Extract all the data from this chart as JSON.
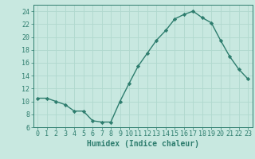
{
  "x": [
    0,
    1,
    2,
    3,
    4,
    5,
    6,
    7,
    8,
    9,
    10,
    11,
    12,
    13,
    14,
    15,
    16,
    17,
    18,
    19,
    20,
    21,
    22,
    23
  ],
  "y": [
    10.5,
    10.5,
    10.0,
    9.5,
    8.5,
    8.5,
    7.0,
    6.8,
    6.8,
    10.0,
    12.8,
    15.5,
    17.5,
    19.5,
    21.0,
    22.8,
    23.5,
    24.0,
    23.0,
    22.2,
    19.5,
    17.0,
    15.0,
    13.5
  ],
  "line_color": "#2e7d6e",
  "marker": "D",
  "markersize": 2.2,
  "linewidth": 1.0,
  "background_color": "#c8e8e0",
  "grid_color": "#b0d8ce",
  "xlabel": "Humidex (Indice chaleur)",
  "ylabel": "",
  "xlim": [
    -0.5,
    23.5
  ],
  "ylim": [
    6,
    25
  ],
  "yticks": [
    6,
    8,
    10,
    12,
    14,
    16,
    18,
    20,
    22,
    24
  ],
  "xticks": [
    0,
    1,
    2,
    3,
    4,
    5,
    6,
    7,
    8,
    9,
    10,
    11,
    12,
    13,
    14,
    15,
    16,
    17,
    18,
    19,
    20,
    21,
    22,
    23
  ],
  "xlabel_fontsize": 7.0,
  "tick_fontsize": 6.0,
  "tick_color": "#2e7d6e",
  "axis_color": "#2e7d6e"
}
